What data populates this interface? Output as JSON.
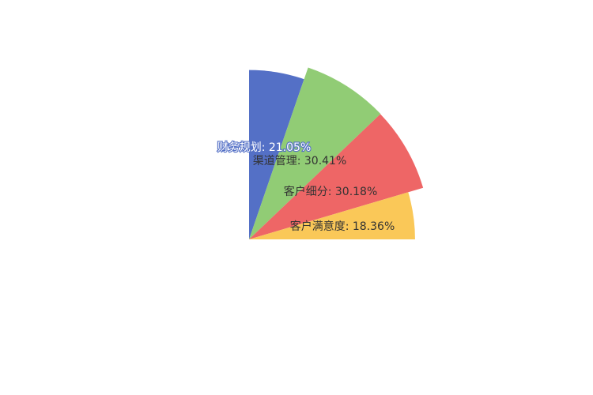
{
  "chart_data": {
    "type": "pie",
    "subtype": "rose-quarter",
    "title": "",
    "series": [
      {
        "name": "",
        "data": [
          {
            "name": "财务规划",
            "value": 21.05,
            "label": "财务规划: 21.05%",
            "color": "#5470c6"
          },
          {
            "name": "渠道管理",
            "value": 30.41,
            "label": "渠道管理: 30.41%",
            "color": "#91cc75"
          },
          {
            "name": "客户细分",
            "value": 30.18,
            "label": "客户细分: 30.18%",
            "color": "#ee6666"
          },
          {
            "name": "客户满意度",
            "value": 18.36,
            "label": "客户满意度: 18.36%",
            "color": "#fac858"
          }
        ]
      }
    ],
    "legend": "none"
  }
}
